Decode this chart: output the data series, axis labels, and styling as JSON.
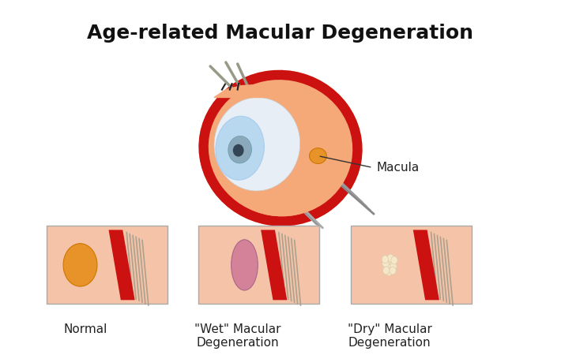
{
  "title": "Age-related Macular Degeneration",
  "title_fontsize": 18,
  "title_fontweight": "bold",
  "bg_color": "#ffffff",
  "macula_label": "Macula",
  "normal_label": "Normal",
  "wet_label": "\"Wet\" Macular\nDegeneration",
  "dry_label": "\"Dry\" Macular\nDegeneration",
  "label_fontsize": 11,
  "eye_skin_color": "#F5A878",
  "eye_red_layer": "#CC1111",
  "eye_inner_color": "#F5A878",
  "eye_lens_color": "#B8D8F0",
  "eye_white_color": "#E8EEF5",
  "box_skin_color": "#F5C4A8",
  "box_red_color": "#CC1111",
  "normal_macula_color": "#E8922A",
  "wet_macula_color": "#D4829A",
  "dry_spots_color": "#F5E8C8",
  "box_border_color": "#AAAAAA"
}
